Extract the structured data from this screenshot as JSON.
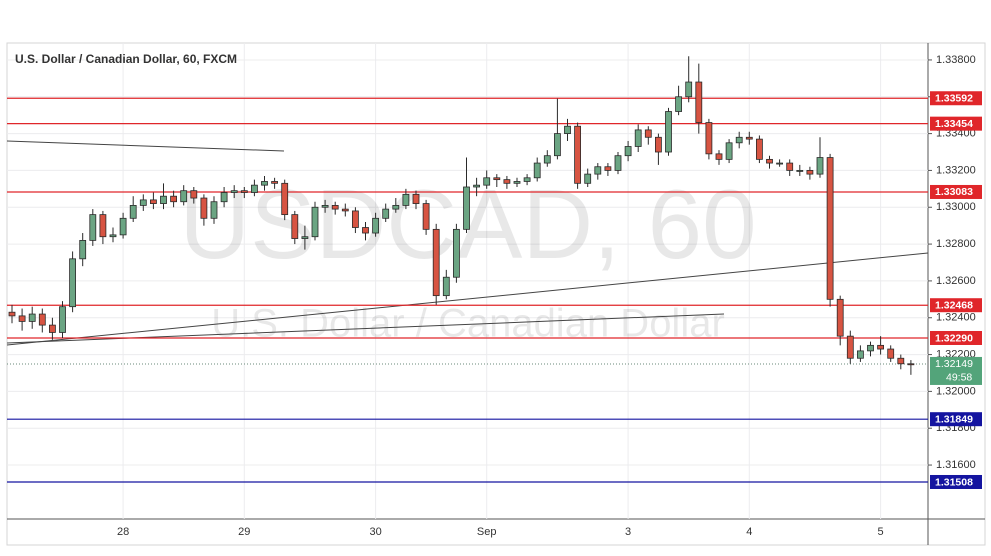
{
  "chart_data": {
    "type": "candlestick",
    "title": "U.S. Dollar / Canadian Dollar, 60, FXCM",
    "watermark_symbol": "USDCAD, 60",
    "watermark_name": "U.S. Dollar / Canadian Dollar",
    "categories": [
      null,
      null,
      null,
      null,
      null,
      null,
      null,
      null,
      null,
      null,
      null,
      "28",
      null,
      null,
      null,
      null,
      null,
      null,
      null,
      null,
      null,
      null,
      null,
      "29",
      null,
      null,
      null,
      null,
      null,
      null,
      null,
      null,
      null,
      null,
      null,
      null,
      "30",
      null,
      null,
      null,
      null,
      null,
      null,
      null,
      null,
      null,
      null,
      "Sep",
      null,
      null,
      null,
      null,
      null,
      null,
      null,
      null,
      null,
      null,
      null,
      null,
      null,
      "3",
      null,
      null,
      null,
      null,
      null,
      null,
      null,
      null,
      null,
      null,
      null,
      "4",
      null,
      null,
      null,
      null,
      null,
      null,
      null,
      null,
      null,
      null,
      null,
      null,
      "5",
      null,
      null,
      null
    ],
    "open": [
      1.3243,
      1.3241,
      1.3238,
      1.3242,
      1.3236,
      1.3232,
      1.3246,
      1.3272,
      1.3282,
      1.3296,
      1.3284,
      1.3285,
      1.3294,
      1.3301,
      1.3304,
      1.3302,
      1.3306,
      1.3303,
      1.3309,
      1.3305,
      1.3294,
      1.3303,
      1.3308,
      1.3309,
      1.3308,
      1.3312,
      1.3314,
      1.3313,
      1.3296,
      1.3283,
      1.3284,
      1.33,
      1.3301,
      1.3299,
      1.3298,
      1.3289,
      1.3286,
      1.3294,
      1.3299,
      1.3301,
      1.3307,
      1.3302,
      1.3288,
      1.3252,
      1.3262,
      1.3288,
      1.3311,
      1.3312,
      1.3316,
      1.3315,
      1.3313,
      1.3314,
      1.3316,
      1.3324,
      1.3328,
      1.334,
      1.3344,
      1.3313,
      1.3318,
      1.3322,
      1.332,
      1.3328,
      1.3333,
      1.3342,
      1.3338,
      1.333,
      1.3352,
      1.336,
      1.3368,
      1.3346,
      1.3329,
      1.3326,
      1.3335,
      1.3338,
      1.3337,
      1.3326,
      1.3324,
      1.3324,
      1.332,
      1.332,
      1.3318,
      1.3327,
      1.325,
      1.323,
      1.3218,
      1.3222,
      1.3225,
      1.3223,
      1.3218,
      1.3215
    ],
    "high": [
      1.3247,
      1.3245,
      1.3246,
      1.3245,
      1.324,
      1.3249,
      1.3276,
      1.3286,
      1.3299,
      1.3298,
      1.3289,
      1.3297,
      1.3306,
      1.3307,
      1.3308,
      1.3313,
      1.3309,
      1.3312,
      1.3311,
      1.3307,
      1.3306,
      1.3311,
      1.3312,
      1.3311,
      1.3315,
      1.3317,
      1.3316,
      1.3315,
      1.3298,
      1.329,
      1.3303,
      1.3304,
      1.3303,
      1.3302,
      1.33,
      1.3292,
      1.3297,
      1.3302,
      1.3305,
      1.331,
      1.3309,
      1.3304,
      1.3291,
      1.3266,
      1.3291,
      1.3327,
      1.3316,
      1.332,
      1.3318,
      1.3317,
      1.3316,
      1.3318,
      1.3327,
      1.3331,
      1.3359,
      1.3348,
      1.3346,
      1.3321,
      1.3324,
      1.3324,
      1.333,
      1.3336,
      1.3345,
      1.3344,
      1.334,
      1.3354,
      1.3366,
      1.3382,
      1.3378,
      1.3348,
      1.3331,
      1.3337,
      1.3341,
      1.3341,
      1.3339,
      1.3328,
      1.3326,
      1.3326,
      1.3323,
      1.3322,
      1.3338,
      1.3329,
      1.3252,
      1.3233,
      1.3225,
      1.3227,
      1.323,
      1.3225,
      1.322,
      1.3217
    ],
    "low": [
      1.3237,
      1.3233,
      1.3234,
      1.3232,
      1.3228,
      1.3229,
      1.3243,
      1.3268,
      1.3279,
      1.328,
      1.3281,
      1.3283,
      1.3292,
      1.3298,
      1.3299,
      1.3299,
      1.33,
      1.3301,
      1.3302,
      1.329,
      1.3291,
      1.33,
      1.3305,
      1.3305,
      1.3306,
      1.3309,
      1.331,
      1.3293,
      1.328,
      1.3277,
      1.3282,
      1.3297,
      1.3296,
      1.3295,
      1.3286,
      1.3282,
      1.3284,
      1.3292,
      1.3297,
      1.3299,
      1.3299,
      1.3285,
      1.3247,
      1.325,
      1.3259,
      1.3286,
      1.3306,
      1.331,
      1.3311,
      1.331,
      1.3311,
      1.3312,
      1.3314,
      1.3322,
      1.3326,
      1.3336,
      1.331,
      1.3311,
      1.3315,
      1.3317,
      1.3318,
      1.3325,
      1.333,
      1.3334,
      1.3323,
      1.3328,
      1.335,
      1.3357,
      1.334,
      1.3326,
      1.3323,
      1.3324,
      1.3332,
      1.3334,
      1.3324,
      1.3321,
      1.3322,
      1.3317,
      1.3317,
      1.3315,
      1.3316,
      1.3246,
      1.3225,
      1.3215,
      1.3216,
      1.3219,
      1.322,
      1.3216,
      1.3212,
      1.3209
    ],
    "close": [
      1.3241,
      1.3238,
      1.3242,
      1.3236,
      1.3232,
      1.3246,
      1.3272,
      1.3282,
      1.3296,
      1.3284,
      1.3285,
      1.3294,
      1.3301,
      1.3304,
      1.3302,
      1.3306,
      1.3303,
      1.3309,
      1.3305,
      1.3294,
      1.3303,
      1.3308,
      1.3309,
      1.3308,
      1.3312,
      1.3314,
      1.3313,
      1.3296,
      1.3283,
      1.3284,
      1.33,
      1.3301,
      1.3299,
      1.3298,
      1.3289,
      1.3286,
      1.3294,
      1.3299,
      1.3301,
      1.3307,
      1.3302,
      1.3288,
      1.3252,
      1.3262,
      1.3288,
      1.3311,
      1.3312,
      1.3316,
      1.3315,
      1.3313,
      1.3314,
      1.3316,
      1.3324,
      1.3328,
      1.334,
      1.3344,
      1.3313,
      1.3318,
      1.3322,
      1.332,
      1.3328,
      1.3333,
      1.3342,
      1.3338,
      1.333,
      1.3352,
      1.336,
      1.3368,
      1.3346,
      1.3329,
      1.3326,
      1.3335,
      1.3338,
      1.3337,
      1.3326,
      1.3324,
      1.3324,
      1.332,
      1.332,
      1.3318,
      1.3327,
      1.325,
      1.323,
      1.3218,
      1.3222,
      1.3225,
      1.3223,
      1.3218,
      1.3215,
      1.32149
    ],
    "up_color": "#6ba583",
    "down_color": "#d75442",
    "border_color": "#2a2a2a",
    "ylim": [
      1.31307,
      1.33892
    ],
    "yticks": [
      {
        "value": 1.316,
        "label": "1.31600"
      },
      {
        "value": 1.318,
        "label": "1.31800"
      },
      {
        "value": 1.32,
        "label": "1.32000"
      },
      {
        "value": 1.322,
        "label": "1.32200"
      },
      {
        "value": 1.324,
        "label": "1.32400"
      },
      {
        "value": 1.326,
        "label": "1.32600"
      },
      {
        "value": 1.328,
        "label": "1.32800"
      },
      {
        "value": 1.33,
        "label": "1.33000"
      },
      {
        "value": 1.332,
        "label": "1.33200"
      },
      {
        "value": 1.334,
        "label": "1.33400"
      },
      {
        "value": 1.336,
        "label": "1.33600"
      },
      {
        "value": 1.338,
        "label": "1.33800"
      }
    ],
    "grid": true,
    "levels": [
      {
        "value": 1.33592,
        "color": "#e0262a"
      },
      {
        "value": 1.33454,
        "color": "#e0262a"
      },
      {
        "value": 1.33083,
        "color": "#e0262a"
      },
      {
        "value": 1.32468,
        "color": "#e0262a"
      },
      {
        "value": 1.3229,
        "label": "1.32290",
        "color": "#e0262a"
      },
      {
        "value": 1.31849,
        "color": "#1414a0"
      },
      {
        "value": 1.31508,
        "color": "#1414a0"
      }
    ],
    "current_price": 1.32149,
    "current_color": "#53a47a",
    "countdown": "49:58"
  }
}
